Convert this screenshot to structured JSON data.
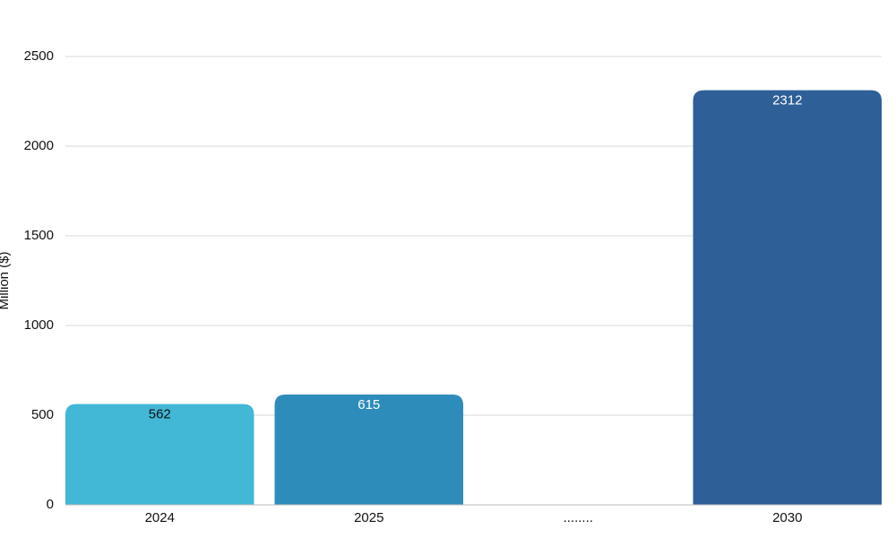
{
  "chart_data": {
    "type": "bar",
    "y_label": "Million ($)",
    "categories": [
      "2024",
      "2025",
      "........",
      "2030"
    ],
    "values": [
      562,
      615,
      null,
      2312
    ],
    "colors": [
      "#42b7d6",
      "#2e8cba",
      null,
      "#2e5f97"
    ],
    "value_label_colors": [
      "#111111",
      "#ffffff",
      null,
      "#ffffff"
    ],
    "ylim": [
      0,
      2500
    ],
    "yticks": [
      0,
      500,
      1000,
      1500,
      2000,
      2500
    ],
    "grid": true
  }
}
